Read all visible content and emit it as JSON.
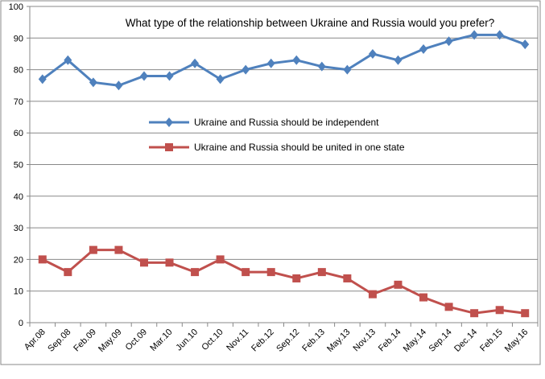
{
  "chart_data": {
    "type": "line",
    "title": "What type of the relationship between Ukraine and Russia would you prefer?",
    "xlabel": "",
    "ylabel": "",
    "ylim": [
      0,
      100
    ],
    "yticks": [
      0,
      10,
      20,
      30,
      40,
      50,
      60,
      70,
      80,
      90,
      100
    ],
    "grid": true,
    "legend_position": "center-left",
    "categories": [
      "Apr.08",
      "Sep.08",
      "Feb.09",
      "May.09",
      "Oct.09",
      "Mar.10",
      "Jun.10",
      "Oct.10",
      "Nov.11",
      "Feb.12",
      "Sep.12",
      "Feb.13",
      "May.13",
      "Nov.13",
      "Feb.14",
      "May.14",
      "Sep.14",
      "Dec.14",
      "Feb.15",
      "May.16"
    ],
    "series": [
      {
        "name": "Ukraine and Russia should be independent",
        "color": "#4F81BD",
        "marker": "diamond",
        "values": [
          77,
          83,
          76,
          75,
          78,
          78,
          82,
          77,
          80,
          82,
          83,
          81,
          80,
          85,
          83,
          86.5,
          89,
          91,
          91,
          88
        ]
      },
      {
        "name": "Ukraine and Russia should be united in one state",
        "color": "#C0504D",
        "marker": "square",
        "values": [
          20,
          16,
          23,
          23,
          19,
          19,
          16,
          20,
          16,
          16,
          14,
          16,
          14,
          9,
          12,
          8,
          5,
          3,
          4,
          3
        ]
      }
    ]
  }
}
